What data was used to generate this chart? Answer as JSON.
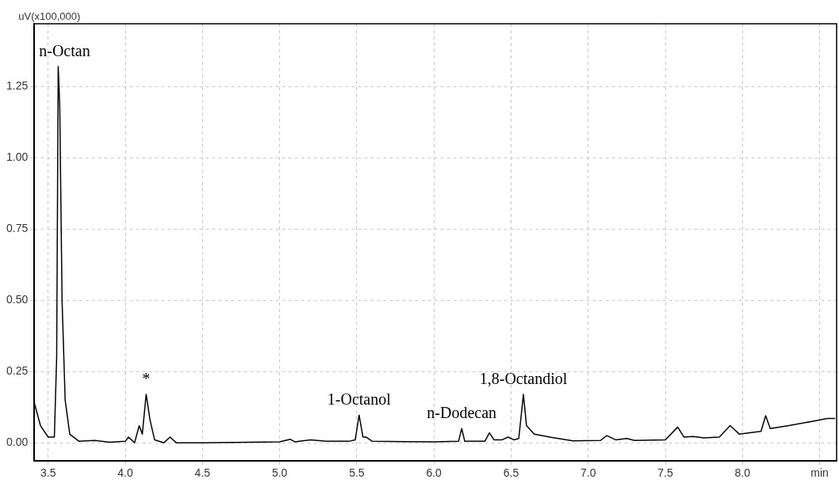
{
  "chart_data": {
    "type": "line",
    "ylabel": "uV(x100,000)",
    "x": [
      3.41,
      3.45,
      3.5,
      3.54,
      3.555,
      3.565,
      3.575,
      3.59,
      3.61,
      3.64,
      3.7,
      3.8,
      3.9,
      4.0,
      4.02,
      4.06,
      4.09,
      4.11,
      4.135,
      4.16,
      4.19,
      4.25,
      4.29,
      4.33,
      4.5,
      5.0,
      5.07,
      5.1,
      5.2,
      5.3,
      5.45,
      5.49,
      5.515,
      5.54,
      5.56,
      5.6,
      6.0,
      6.16,
      6.18,
      6.2,
      6.33,
      6.36,
      6.39,
      6.44,
      6.48,
      6.52,
      6.55,
      6.58,
      6.6,
      6.65,
      6.75,
      6.9,
      7.08,
      7.12,
      7.18,
      7.25,
      7.3,
      7.5,
      7.58,
      7.62,
      7.68,
      7.75,
      7.85,
      7.92,
      7.98,
      8.05,
      8.12,
      8.15,
      8.18,
      8.3,
      8.45,
      8.55,
      8.6
    ],
    "series": [
      {
        "color": "#000000",
        "values": [
          0.14,
          0.06,
          0.02,
          0.02,
          0.3,
          1.32,
          1.18,
          0.5,
          0.15,
          0.03,
          0.005,
          0.008,
          0.002,
          0.005,
          0.02,
          0.0,
          0.06,
          0.03,
          0.17,
          0.08,
          0.01,
          0.0,
          0.02,
          0.0,
          0.0,
          0.003,
          0.012,
          0.003,
          0.01,
          0.005,
          0.005,
          0.01,
          0.097,
          0.02,
          0.02,
          0.005,
          0.003,
          0.005,
          0.05,
          0.005,
          0.005,
          0.035,
          0.01,
          0.01,
          0.02,
          0.01,
          0.015,
          0.17,
          0.06,
          0.03,
          0.02,
          0.007,
          0.008,
          0.025,
          0.01,
          0.015,
          0.008,
          0.01,
          0.055,
          0.02,
          0.022,
          0.017,
          0.02,
          0.06,
          0.03,
          0.035,
          0.04,
          0.095,
          0.05,
          0.06,
          0.075,
          0.085,
          0.085
        ]
      }
    ],
    "xlim": [
      3.41,
      8.61
    ],
    "xticks": [
      {
        "value": 3.5,
        "label": "3.5"
      },
      {
        "value": 4,
        "label": "4.0"
      },
      {
        "value": 4.5,
        "label": "4.5"
      },
      {
        "value": 5,
        "label": "5.0"
      },
      {
        "value": 5.5,
        "label": "5.5"
      },
      {
        "value": 6,
        "label": "6.0"
      },
      {
        "value": 6.5,
        "label": "6.5"
      },
      {
        "value": 7,
        "label": "7.0"
      },
      {
        "value": 7.5,
        "label": "7.5"
      },
      {
        "value": 8,
        "label": "8.0"
      },
      {
        "value": 8.5,
        "label": "min"
      }
    ],
    "ylim": [
      -0.064,
      1.47
    ],
    "yticks": [
      {
        "value": 0,
        "label": "0.00"
      },
      {
        "value": 0.25,
        "label": "0.25"
      },
      {
        "value": 0.5,
        "label": "0.50"
      },
      {
        "value": 0.75,
        "label": "0.75"
      },
      {
        "value": 1,
        "label": "1.00"
      },
      {
        "value": 1.25,
        "label": "1.25"
      }
    ],
    "grid": true,
    "marker": "none",
    "line_style": "solid",
    "legend": false,
    "annotations": [
      {
        "text": "n-Octan",
        "x": 3.565,
        "y": 1.32
      },
      {
        "text": "*",
        "x": 4.135,
        "y": 0.17
      },
      {
        "text": "1-Octanol",
        "x": 5.515,
        "y": 0.097
      },
      {
        "text": "n-Dodecan",
        "x": 6.18,
        "y": 0.05
      },
      {
        "text": "1,8-Octandiol",
        "x": 6.58,
        "y": 0.17
      }
    ]
  }
}
